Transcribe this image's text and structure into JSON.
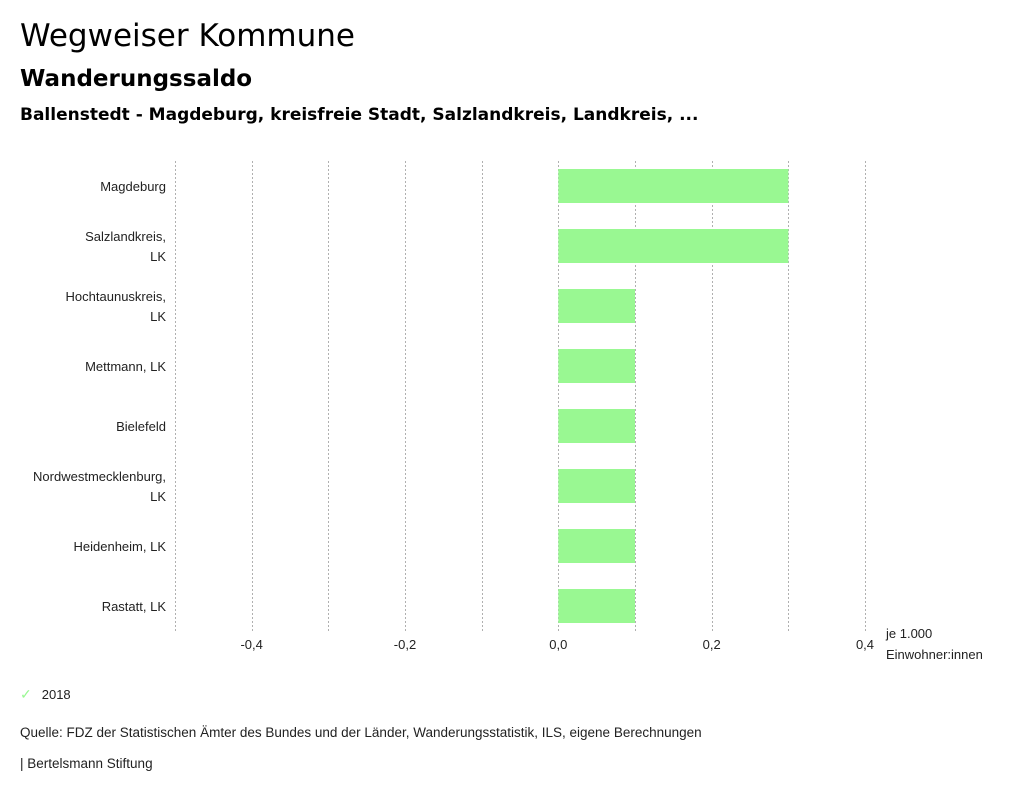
{
  "header": {
    "title": "Wegweiser Kommune",
    "subtitle": "Wanderungssaldo",
    "selection": "Ballenstedt - Magdeburg, kreisfreie Stadt, Salzlandkreis, Landkreis, ..."
  },
  "chart_data": {
    "type": "bar",
    "orientation": "horizontal",
    "categories": [
      [
        "Magdeburg"
      ],
      [
        "Salzlandkreis,",
        "LK"
      ],
      [
        "Hochtaunuskreis,",
        "LK"
      ],
      [
        "Mettmann, LK"
      ],
      [
        "Bielefeld"
      ],
      [
        "Nordwestmecklenburg,",
        "LK"
      ],
      [
        "Heidenheim, LK"
      ],
      [
        "Rastatt, LK"
      ]
    ],
    "series": [
      {
        "name": "2018",
        "color": "#99f892",
        "values": [
          0.3,
          0.3,
          0.1,
          0.1,
          0.1,
          0.1,
          0.1,
          0.1
        ]
      }
    ],
    "xlim": [
      -0.5,
      0.4
    ],
    "gridlines": [
      -0.5,
      -0.4,
      -0.3,
      -0.2,
      -0.1,
      0.0,
      0.1,
      0.2,
      0.3,
      0.4
    ],
    "ticks": [
      {
        "value": -0.4,
        "label": "-0,4"
      },
      {
        "value": -0.2,
        "label": "-0,2"
      },
      {
        "value": 0.0,
        "label": "0,0"
      },
      {
        "value": 0.2,
        "label": "0,2"
      },
      {
        "value": 0.4,
        "label": "0,4"
      }
    ],
    "xlabel": [
      "je 1.000",
      "Einwohner:innen"
    ],
    "grid": true,
    "legend_position": "bottom-left"
  },
  "legend": {
    "icon": "check-icon",
    "label": "2018",
    "color": "#99f892"
  },
  "footer": {
    "source": "Quelle: FDZ der Statistischen Ämter des Bundes und der Länder, Wanderungsstatistik, ILS, eigene Berechnungen",
    "brand": "| Bertelsmann Stiftung"
  }
}
